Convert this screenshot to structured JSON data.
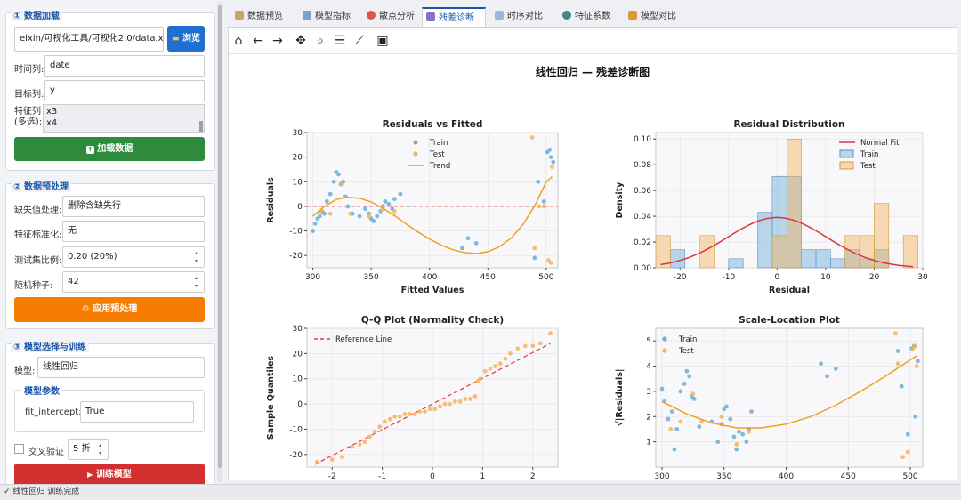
{
  "left_panel": {
    "data_load": {
      "title": "① 数据加载",
      "file_path": "eixin/可视化工具/可视化2.0/data.xlsx",
      "browse_label": "浏览",
      "time_col_label": "时间列:",
      "time_col_value": "date",
      "target_col_label": "目标列:",
      "target_col_value": "y",
      "feature_col_label_1": "特征列",
      "feature_col_label_2": "(多选):",
      "features": [
        "x3",
        "x4"
      ],
      "load_button": "加载数据"
    },
    "preprocess": {
      "title": "② 数据预处理",
      "missing_label": "缺失值处理:",
      "missing_value": "删除含缺失行",
      "scale_label": "特征标准化:",
      "scale_value": "无",
      "test_ratio_label": "测试集比例:",
      "test_ratio_value": "0.20  (20%)",
      "seed_label": "随机种子:",
      "seed_value": "42",
      "apply_button": "应用预处理"
    },
    "model": {
      "title": "③ 模型选择与训练",
      "model_label": "模型:",
      "model_value": "线性回归",
      "params_title": "模型参数",
      "fit_intercept_label": "fit_intercept:",
      "fit_intercept_value": "True",
      "cv_label": "交叉验证",
      "cv_value": "5 折",
      "train_button": "训练模型"
    }
  },
  "tabs": [
    {
      "label": "数据预览",
      "color": "#c9a46a"
    },
    {
      "label": "模型指标",
      "color": "#7aa0c8"
    },
    {
      "label": "散点分析",
      "color": "#d85a4a"
    },
    {
      "label": "残差诊断",
      "color": "#8a6fc8"
    },
    {
      "label": "时序对比",
      "color": "#9fb5d8"
    },
    {
      "label": "特征系数",
      "color": "#3a8a8a"
    },
    {
      "label": "模型对比",
      "color": "#d89a3a"
    }
  ],
  "active_tab": 3,
  "toolbar_icons": [
    "home-icon",
    "back-arrow-icon",
    "forward-arrow-icon",
    "pan-icon",
    "zoom-icon",
    "configure-icon",
    "edit-axis-icon",
    "save-icon"
  ],
  "figure_title": "线性回归  —  残差诊断图",
  "status_text": "✓ 线性回归 训练完成",
  "colors": {
    "train": "#6baed6",
    "test": "#f4b35e",
    "trend": "#f0a020",
    "ref": "#e03a3a",
    "normal": "#d9363e",
    "primary": "#1f6fd1",
    "green": "#2e8b3d",
    "orange": "#f57c00",
    "red": "#d32f2f"
  },
  "chart_data": [
    {
      "type": "scatter",
      "title": "Residuals vs Fitted",
      "xlabel": "Fitted Values",
      "ylabel": "Residuals",
      "xlim": [
        295,
        510
      ],
      "ylim": [
        -25,
        30
      ],
      "xticks": [
        300,
        350,
        400,
        450,
        500
      ],
      "yticks": [
        -20,
        -10,
        0,
        10,
        20,
        30
      ],
      "legend": [
        "Train",
        "Test",
        "Trend"
      ],
      "legend_position": "top-center",
      "grid": true,
      "series": [
        {
          "name": "Train",
          "points": [
            [
              300,
              -10
            ],
            [
              302,
              -7
            ],
            [
              304,
              -5
            ],
            [
              306,
              -4
            ],
            [
              308,
              -2
            ],
            [
              310,
              -3
            ],
            [
              312,
              2
            ],
            [
              315,
              5
            ],
            [
              318,
              10
            ],
            [
              320,
              14
            ],
            [
              322,
              13
            ],
            [
              324,
              9
            ],
            [
              326,
              10
            ],
            [
              328,
              4
            ],
            [
              330,
              0
            ],
            [
              334,
              -3
            ],
            [
              340,
              -4
            ],
            [
              345,
              -1
            ],
            [
              348,
              -3
            ],
            [
              350,
              -5
            ],
            [
              352,
              -6
            ],
            [
              355,
              -4
            ],
            [
              358,
              -2
            ],
            [
              360,
              0
            ],
            [
              362,
              2
            ],
            [
              365,
              1
            ],
            [
              368,
              -1
            ],
            [
              370,
              3
            ],
            [
              375,
              5
            ],
            [
              428,
              -17
            ],
            [
              433,
              -13
            ],
            [
              440,
              -15
            ],
            [
              490,
              -21
            ],
            [
              493,
              10
            ],
            [
              498,
              2
            ],
            [
              501,
              22
            ],
            [
              503,
              23
            ],
            [
              504,
              20
            ],
            [
              506,
              18
            ]
          ]
        },
        {
          "name": "Test",
          "points": [
            [
              307,
              -2
            ],
            [
              315,
              -3
            ],
            [
              325,
              9
            ],
            [
              332,
              -3
            ],
            [
              348,
              -4
            ],
            [
              360,
              -1
            ],
            [
              370,
              -2
            ],
            [
              488,
              28
            ],
            [
              490,
              -17
            ],
            [
              494,
              0
            ],
            [
              498,
              0
            ],
            [
              502,
              -22
            ],
            [
              504,
              -23
            ],
            [
              505,
              16
            ]
          ]
        },
        {
          "name": "Trend",
          "points": [
            [
              300,
              -4
            ],
            [
              310,
              0
            ],
            [
              320,
              2.8
            ],
            [
              330,
              3.7
            ],
            [
              340,
              3.3
            ],
            [
              350,
              1.8
            ],
            [
              360,
              -0.8
            ],
            [
              370,
              -3.8
            ],
            [
              380,
              -7.2
            ],
            [
              390,
              -10.4
            ],
            [
              400,
              -13.3
            ],
            [
              410,
              -15.8
            ],
            [
              420,
              -17.7
            ],
            [
              430,
              -18.8
            ],
            [
              440,
              -19.2
            ],
            [
              450,
              -18.5
            ],
            [
              460,
              -16.4
            ],
            [
              470,
              -12.9
            ],
            [
              480,
              -7.4
            ],
            [
              490,
              0.2
            ],
            [
              500,
              9.9
            ],
            [
              505,
              12
            ]
          ]
        }
      ],
      "reference_line": {
        "y": 0
      }
    },
    {
      "type": "histogram",
      "title": "Residual Distribution",
      "xlabel": "Residual",
      "ylabel": "Density",
      "xlim": [
        -25,
        30
      ],
      "ylim": [
        0,
        0.105
      ],
      "xticks": [
        -20,
        -10,
        0,
        10,
        20,
        30
      ],
      "yticks": [
        0.0,
        0.02,
        0.04,
        0.06,
        0.08,
        0.1
      ],
      "legend": [
        "Normal Fit",
        "Train",
        "Test"
      ],
      "legend_position": "top-right",
      "grid": true,
      "bin_edges": [
        -25,
        -22,
        -19,
        -16,
        -13,
        -10,
        -7,
        -4,
        -1,
        2,
        5,
        8,
        11,
        14,
        17,
        20,
        23,
        26,
        29
      ],
      "train_density": [
        0.0,
        0.014,
        0.0,
        0.0,
        0.0,
        0.007,
        0.0,
        0.043,
        0.071,
        0.071,
        0.014,
        0.014,
        0.007,
        0.014,
        0.007,
        0.014,
        0.0,
        0.0
      ],
      "test_density": [
        0.025,
        0.0,
        0.0,
        0.025,
        0.0,
        0.0,
        0.0,
        0.0,
        0.025,
        0.1,
        0.0,
        0.0,
        0.0,
        0.025,
        0.025,
        0.05,
        0.0,
        0.025
      ],
      "normal_fit": {
        "mean": 0,
        "std": 10.2
      }
    },
    {
      "type": "scatter",
      "title": "Q-Q Plot (Normality Check)",
      "xlabel": "Theoretical Quantiles",
      "ylabel": "Sample Quantiles",
      "xlim": [
        -2.5,
        2.5
      ],
      "ylim": [
        -25,
        30
      ],
      "xticks": [
        -2,
        -1,
        0,
        1,
        2
      ],
      "yticks": [
        -20,
        -10,
        0,
        10,
        20,
        30
      ],
      "legend": [
        "Reference Line"
      ],
      "legend_position": "top-left",
      "grid": true,
      "points": [
        [
          -2.3,
          -23
        ],
        [
          -2.0,
          -22
        ],
        [
          -1.8,
          -21
        ],
        [
          -1.6,
          -17
        ],
        [
          -1.45,
          -16
        ],
        [
          -1.35,
          -15
        ],
        [
          -1.25,
          -13
        ],
        [
          -1.15,
          -11
        ],
        [
          -1.05,
          -9
        ],
        [
          -0.95,
          -7
        ],
        [
          -0.85,
          -6
        ],
        [
          -0.75,
          -5
        ],
        [
          -0.65,
          -5
        ],
        [
          -0.55,
          -4
        ],
        [
          -0.45,
          -4
        ],
        [
          -0.35,
          -4
        ],
        [
          -0.25,
          -3
        ],
        [
          -0.15,
          -3
        ],
        [
          -0.05,
          -2
        ],
        [
          0.05,
          -2
        ],
        [
          0.15,
          -1
        ],
        [
          0.25,
          0
        ],
        [
          0.35,
          0
        ],
        [
          0.45,
          1
        ],
        [
          0.55,
          1
        ],
        [
          0.65,
          2
        ],
        [
          0.75,
          2
        ],
        [
          0.85,
          3
        ],
        [
          0.9,
          9
        ],
        [
          0.95,
          10
        ],
        [
          1.05,
          13
        ],
        [
          1.15,
          14
        ],
        [
          1.25,
          15
        ],
        [
          1.35,
          16
        ],
        [
          1.45,
          18
        ],
        [
          1.55,
          20
        ],
        [
          1.7,
          22
        ],
        [
          1.85,
          23
        ],
        [
          2.0,
          23
        ],
        [
          2.15,
          24
        ],
        [
          2.35,
          28
        ]
      ],
      "reference_line": {
        "slope": 10.2,
        "intercept": 0
      }
    },
    {
      "type": "scatter",
      "title": "Scale-Location Plot",
      "xlabel": "Fitted Values",
      "ylabel": "√|Residuals|",
      "xlim": [
        295,
        510
      ],
      "ylim": [
        0,
        5.5
      ],
      "xticks": [
        300,
        350,
        400,
        450,
        500
      ],
      "yticks": [
        1,
        2,
        3,
        4,
        5
      ],
      "legend": [
        "Train",
        "Test"
      ],
      "legend_position": "top-left",
      "grid": true,
      "series": [
        {
          "name": "Train",
          "points": [
            [
              300,
              3.1
            ],
            [
              302,
              2.6
            ],
            [
              305,
              1.9
            ],
            [
              308,
              2.2
            ],
            [
              310,
              0.7
            ],
            [
              312,
              1.5
            ],
            [
              315,
              3.0
            ],
            [
              318,
              3.3
            ],
            [
              320,
              3.8
            ],
            [
              322,
              3.6
            ],
            [
              324,
              2.8
            ],
            [
              326,
              2.7
            ],
            [
              330,
              1.6
            ],
            [
              340,
              1.8
            ],
            [
              345,
              1.0
            ],
            [
              348,
              1.7
            ],
            [
              350,
              2.3
            ],
            [
              352,
              2.4
            ],
            [
              355,
              1.9
            ],
            [
              358,
              1.2
            ],
            [
              360,
              0.7
            ],
            [
              362,
              1.4
            ],
            [
              365,
              1.3
            ],
            [
              368,
              1.0
            ],
            [
              370,
              1.5
            ],
            [
              372,
              2.2
            ],
            [
              428,
              4.1
            ],
            [
              433,
              3.6
            ],
            [
              440,
              3.9
            ],
            [
              490,
              4.6
            ],
            [
              493,
              3.2
            ],
            [
              498,
              1.3
            ],
            [
              501,
              4.7
            ],
            [
              503,
              4.8
            ],
            [
              504,
              2.0
            ],
            [
              506,
              4.2
            ]
          ]
        },
        {
          "name": "Test",
          "points": [
            [
              307,
              1.5
            ],
            [
              315,
              1.8
            ],
            [
              325,
              2.9
            ],
            [
              332,
              1.8
            ],
            [
              348,
              2.0
            ],
            [
              360,
              0.9
            ],
            [
              370,
              1.4
            ],
            [
              488,
              5.3
            ],
            [
              490,
              4.1
            ],
            [
              494,
              0.4
            ],
            [
              498,
              0.6
            ],
            [
              502,
              4.7
            ],
            [
              504,
              4.8
            ],
            [
              505,
              4.0
            ]
          ]
        },
        {
          "name": "Trend",
          "points": [
            [
              300,
              2.6
            ],
            [
              320,
              2.1
            ],
            [
              340,
              1.75
            ],
            [
              360,
              1.55
            ],
            [
              380,
              1.55
            ],
            [
              400,
              1.7
            ],
            [
              420,
              2.0
            ],
            [
              440,
              2.45
            ],
            [
              460,
              3.0
            ],
            [
              480,
              3.6
            ],
            [
              500,
              4.25
            ],
            [
              505,
              4.4
            ]
          ]
        }
      ]
    }
  ]
}
